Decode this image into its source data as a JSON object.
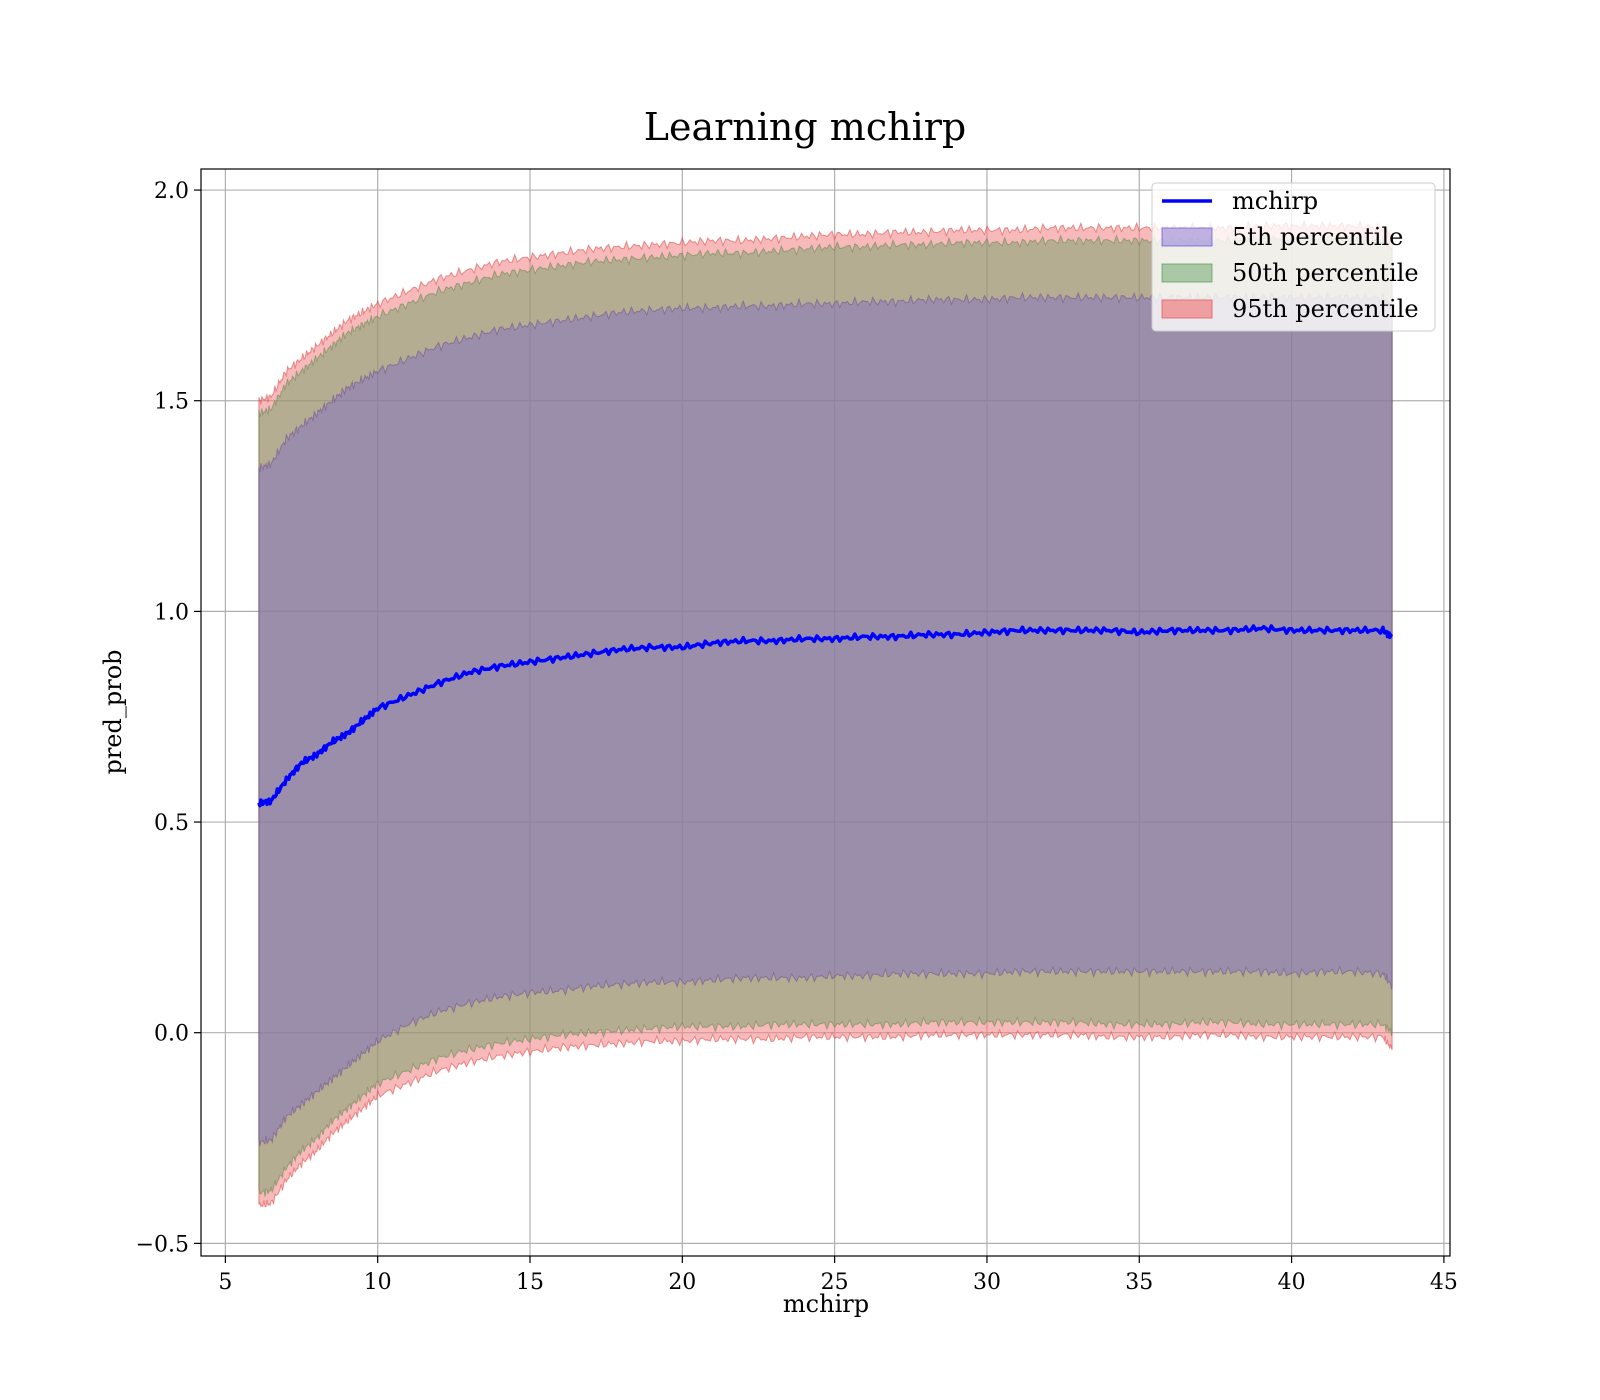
{
  "chart_data": {
    "type": "line",
    "title": "Learning mchirp",
    "xlabel": "mchirp",
    "ylabel": "pred_prob",
    "xlim": [
      4.2,
      45.2
    ],
    "ylim": [
      -0.53,
      2.05
    ],
    "xticks": [
      5,
      10,
      15,
      20,
      25,
      30,
      35,
      40,
      45
    ],
    "yticks": [
      -0.5,
      0.0,
      0.5,
      1.0,
      1.5,
      2.0
    ],
    "ytick_labels": [
      "−0.5",
      "0.0",
      "0.5",
      "1.0",
      "1.5",
      "2.0"
    ],
    "grid": true,
    "legend_position": "top-right",
    "x": [
      6.1,
      6.5,
      7,
      7.5,
      8,
      8.5,
      9,
      9.5,
      10,
      11,
      12,
      13,
      14,
      15,
      16,
      17,
      18,
      19,
      20,
      21,
      22,
      23,
      24,
      25,
      26,
      27,
      28,
      29,
      30,
      31,
      32,
      33,
      34,
      35,
      36,
      37,
      38,
      39,
      40,
      41,
      42,
      43,
      43.3
    ],
    "series": [
      {
        "name": "mchirp",
        "kind": "line",
        "color": "#0000ff",
        "values": [
          0.545,
          0.55,
          0.6,
          0.64,
          0.66,
          0.69,
          0.71,
          0.74,
          0.77,
          0.8,
          0.83,
          0.855,
          0.87,
          0.88,
          0.89,
          0.9,
          0.91,
          0.915,
          0.915,
          0.925,
          0.93,
          0.93,
          0.935,
          0.935,
          0.94,
          0.94,
          0.945,
          0.945,
          0.95,
          0.955,
          0.955,
          0.955,
          0.955,
          0.95,
          0.955,
          0.955,
          0.955,
          0.96,
          0.955,
          0.955,
          0.955,
          0.955,
          0.94
        ]
      },
      {
        "name": "5th percentile",
        "kind": "band",
        "color": "#6a5acd",
        "lower": [
          -0.26,
          -0.255,
          -0.2,
          -0.17,
          -0.14,
          -0.11,
          -0.08,
          -0.05,
          -0.02,
          0.02,
          0.05,
          0.07,
          0.085,
          0.095,
          0.1,
          0.11,
          0.115,
          0.12,
          0.12,
          0.125,
          0.13,
          0.13,
          0.13,
          0.135,
          0.135,
          0.14,
          0.14,
          0.14,
          0.14,
          0.145,
          0.145,
          0.145,
          0.145,
          0.145,
          0.145,
          0.145,
          0.145,
          0.145,
          0.14,
          0.145,
          0.145,
          0.14,
          0.11
        ],
        "upper": [
          1.34,
          1.35,
          1.41,
          1.44,
          1.47,
          1.5,
          1.53,
          1.55,
          1.57,
          1.6,
          1.63,
          1.65,
          1.67,
          1.68,
          1.69,
          1.7,
          1.71,
          1.715,
          1.72,
          1.72,
          1.725,
          1.725,
          1.73,
          1.73,
          1.735,
          1.735,
          1.74,
          1.74,
          1.74,
          1.745,
          1.745,
          1.745,
          1.745,
          1.745,
          1.745,
          1.745,
          1.745,
          1.745,
          1.745,
          1.745,
          1.745,
          1.745,
          1.72
        ]
      },
      {
        "name": "50th percentile",
        "kind": "band",
        "color": "#5aa05a",
        "lower": [
          -0.38,
          -0.375,
          -0.32,
          -0.28,
          -0.25,
          -0.21,
          -0.18,
          -0.15,
          -0.12,
          -0.09,
          -0.06,
          -0.04,
          -0.025,
          -0.015,
          -0.005,
          0.0,
          0.005,
          0.01,
          0.015,
          0.015,
          0.015,
          0.02,
          0.02,
          0.02,
          0.02,
          0.02,
          0.025,
          0.025,
          0.025,
          0.025,
          0.025,
          0.025,
          0.02,
          0.02,
          0.02,
          0.025,
          0.025,
          0.02,
          0.02,
          0.02,
          0.02,
          0.02,
          0.0
        ],
        "upper": [
          1.47,
          1.48,
          1.54,
          1.57,
          1.6,
          1.63,
          1.66,
          1.68,
          1.7,
          1.73,
          1.76,
          1.78,
          1.8,
          1.81,
          1.82,
          1.83,
          1.835,
          1.84,
          1.845,
          1.85,
          1.85,
          1.855,
          1.86,
          1.865,
          1.865,
          1.87,
          1.87,
          1.875,
          1.875,
          1.875,
          1.88,
          1.88,
          1.88,
          1.88,
          1.88,
          1.88,
          1.88,
          1.885,
          1.885,
          1.885,
          1.885,
          1.88,
          1.86
        ]
      },
      {
        "name": "95th percentile",
        "kind": "band",
        "color": "#f08080",
        "lower": [
          -0.41,
          -0.405,
          -0.35,
          -0.31,
          -0.28,
          -0.24,
          -0.21,
          -0.18,
          -0.15,
          -0.12,
          -0.09,
          -0.07,
          -0.055,
          -0.045,
          -0.035,
          -0.03,
          -0.025,
          -0.02,
          -0.02,
          -0.015,
          -0.015,
          -0.015,
          -0.01,
          -0.01,
          -0.01,
          -0.01,
          -0.005,
          -0.005,
          -0.005,
          -0.005,
          -0.005,
          -0.005,
          -0.01,
          -0.01,
          -0.01,
          -0.005,
          -0.005,
          -0.01,
          -0.01,
          -0.01,
          -0.01,
          -0.01,
          -0.04
        ]
      }
    ]
  }
}
